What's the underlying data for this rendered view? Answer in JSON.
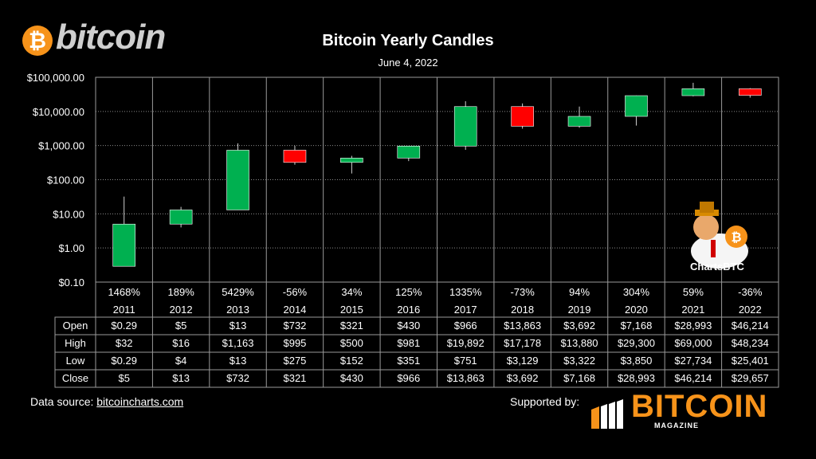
{
  "brand": {
    "logo_text": "bitcoin",
    "coin_symbol": "₿",
    "coin_color": "#f7931a"
  },
  "chart_data": {
    "type": "candlestick",
    "title": "Bitcoin Yearly Candles",
    "subtitle": "June 4, 2022",
    "y_scale": "log",
    "ylim": [
      0.1,
      100000
    ],
    "y_ticks": [
      "$100,000.00",
      "$10,000.00",
      "$1,000.00",
      "$100.00",
      "$10.00",
      "$1.00",
      "$0.10"
    ],
    "grid": true,
    "categories": [
      "2011",
      "2012",
      "2013",
      "2014",
      "2015",
      "2016",
      "2017",
      "2018",
      "2019",
      "2020",
      "2021",
      "2022"
    ],
    "returns": [
      "1468%",
      "189%",
      "5429%",
      "-56%",
      "34%",
      "125%",
      "1335%",
      "-73%",
      "94%",
      "304%",
      "59%",
      "-36%"
    ],
    "open": [
      0.29,
      5,
      13,
      732,
      321,
      430,
      966,
      13863,
      3692,
      7168,
      28993,
      46214
    ],
    "high": [
      32,
      16,
      1163,
      995,
      500,
      981,
      19892,
      17178,
      13880,
      29300,
      69000,
      48234
    ],
    "low": [
      0.29,
      4,
      13,
      275,
      152,
      351,
      751,
      3129,
      3322,
      3850,
      27734,
      25401
    ],
    "close": [
      5,
      13,
      732,
      321,
      430,
      966,
      13863,
      3692,
      7168,
      28993,
      46214,
      29657
    ],
    "up_color": "#00b050",
    "down_color": "#ff0000"
  },
  "table": {
    "row_labels": [
      "Open",
      "High",
      "Low",
      "Close"
    ],
    "rows": [
      [
        "$0.29",
        "$5",
        "$13",
        "$732",
        "$321",
        "$430",
        "$966",
        "$13,863",
        "$3,692",
        "$7,168",
        "$28,993",
        "$46,214"
      ],
      [
        "$32",
        "$16",
        "$1,163",
        "$995",
        "$500",
        "$981",
        "$19,892",
        "$17,178",
        "$13,880",
        "$29,300",
        "$69,000",
        "$48,234"
      ],
      [
        "$0.29",
        "$4",
        "$13",
        "$275",
        "$152",
        "$351",
        "$751",
        "$3,129",
        "$3,322",
        "$3,850",
        "$27,734",
        "$25,401"
      ],
      [
        "$5",
        "$13",
        "$732",
        "$321",
        "$430",
        "$966",
        "$13,863",
        "$3,692",
        "$7,168",
        "$28,993",
        "$46,214",
        "$29,657"
      ]
    ]
  },
  "mascot_label": "ChartsBTC",
  "footer": {
    "source_prefix": "Data source: ",
    "source_link": "bitcoincharts.com",
    "supported_by": "Supported by:",
    "sponsor_name": "BITCOIN",
    "sponsor_sub": "MAGAZINE"
  }
}
